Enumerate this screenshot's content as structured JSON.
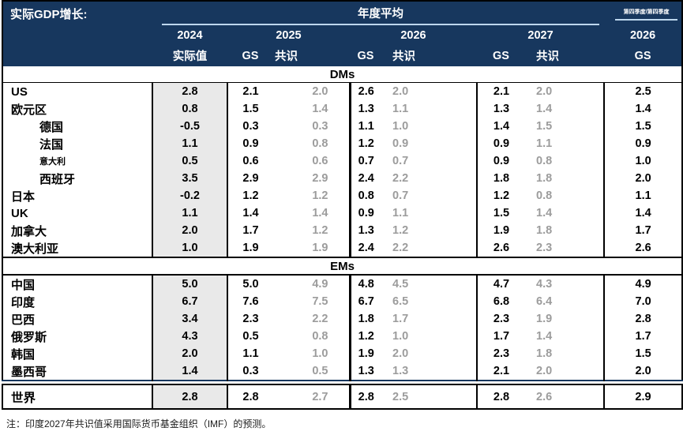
{
  "title": "实际GDP增长:",
  "header": {
    "annual_avg_label": "年度平均",
    "q4_label": "第四季度/第四季度",
    "col_groups": [
      {
        "year": "2024",
        "subs": [
          "实际值"
        ]
      },
      {
        "year": "2025",
        "subs": [
          "GS",
          "共识"
        ]
      },
      {
        "year": "2026",
        "subs": [
          "GS",
          "共识"
        ]
      },
      {
        "year": "2027",
        "subs": [
          "GS",
          "共识"
        ]
      },
      {
        "year": "2026",
        "subs": [
          "GS"
        ]
      }
    ]
  },
  "sections": [
    {
      "label": "DMs",
      "rows": [
        {
          "name": "US",
          "indent": false,
          "small": false,
          "values": [
            "2.8",
            "2.1",
            "2.0",
            "2.6",
            "2.0",
            "2.1",
            "2.0",
            "2.5"
          ]
        },
        {
          "name": "欧元区",
          "indent": false,
          "small": false,
          "values": [
            "0.8",
            "1.5",
            "1.4",
            "1.3",
            "1.1",
            "1.3",
            "1.4",
            "1.4"
          ]
        },
        {
          "name": "德国",
          "indent": true,
          "small": false,
          "values": [
            "-0.5",
            "0.3",
            "0.3",
            "1.1",
            "1.0",
            "1.4",
            "1.5",
            "1.5"
          ]
        },
        {
          "name": "法国",
          "indent": true,
          "small": false,
          "values": [
            "1.1",
            "0.9",
            "0.8",
            "1.2",
            "0.9",
            "0.9",
            "1.1",
            "0.9"
          ]
        },
        {
          "name": "意大利",
          "indent": true,
          "small": true,
          "values": [
            "0.5",
            "0.6",
            "0.6",
            "0.7",
            "0.7",
            "0.9",
            "0.8",
            "1.0"
          ]
        },
        {
          "name": "西班牙",
          "indent": true,
          "small": false,
          "values": [
            "3.5",
            "2.9",
            "2.9",
            "2.4",
            "2.2",
            "1.8",
            "1.8",
            "2.0"
          ]
        },
        {
          "name": "日本",
          "indent": false,
          "small": false,
          "values": [
            "-0.2",
            "1.2",
            "1.2",
            "0.8",
            "0.7",
            "1.2",
            "0.8",
            "1.1"
          ]
        },
        {
          "name": "UK",
          "indent": false,
          "small": false,
          "values": [
            "1.1",
            "1.4",
            "1.4",
            "0.9",
            "1.1",
            "1.5",
            "1.4",
            "1.4"
          ]
        },
        {
          "name": "加拿大",
          "indent": false,
          "small": false,
          "values": [
            "2.0",
            "1.7",
            "1.2",
            "1.3",
            "1.2",
            "1.9",
            "1.8",
            "1.7"
          ]
        },
        {
          "name": "澳大利亚",
          "indent": false,
          "small": false,
          "values": [
            "1.0",
            "1.9",
            "1.9",
            "2.4",
            "2.2",
            "2.6",
            "2.3",
            "2.6"
          ]
        }
      ]
    },
    {
      "label": "EMs",
      "rows": [
        {
          "name": "中国",
          "indent": false,
          "small": false,
          "values": [
            "5.0",
            "5.0",
            "4.9",
            "4.8",
            "4.5",
            "4.7",
            "4.3",
            "4.9"
          ]
        },
        {
          "name": "印度",
          "indent": false,
          "small": false,
          "values": [
            "6.7",
            "7.6",
            "7.5",
            "6.7",
            "6.5",
            "6.8",
            "6.4",
            "7.0"
          ]
        },
        {
          "name": "巴西",
          "indent": false,
          "small": false,
          "values": [
            "3.4",
            "2.3",
            "2.2",
            "1.8",
            "1.7",
            "2.3",
            "1.9",
            "2.8"
          ]
        },
        {
          "name": "俄罗斯",
          "indent": false,
          "small": false,
          "values": [
            "4.3",
            "0.5",
            "0.8",
            "1.2",
            "1.0",
            "1.7",
            "1.4",
            "1.7"
          ]
        },
        {
          "name": "韩国",
          "indent": false,
          "small": false,
          "values": [
            "2.0",
            "1.1",
            "1.0",
            "1.9",
            "2.0",
            "2.3",
            "1.8",
            "1.5"
          ]
        },
        {
          "name": "墨西哥",
          "indent": false,
          "small": false,
          "values": [
            "1.4",
            "0.3",
            "0.5",
            "1.3",
            "1.3",
            "2.1",
            "2.0",
            "2.0"
          ]
        }
      ]
    }
  ],
  "world_row": {
    "name": "世界",
    "values": [
      "2.8",
      "2.8",
      "2.7",
      "2.8",
      "2.5",
      "2.8",
      "2.6",
      "2.9"
    ]
  },
  "note": "注：印度2027年共识值采用国际货币基金组织（IMF）的预测。",
  "colors": {
    "header_bg": "#17375e",
    "accent_line": "#bdd7ee",
    "col_2024_bg": "#e9e9e9",
    "consensus_text": "#9c9c9c",
    "world_divider": "#17375e"
  }
}
